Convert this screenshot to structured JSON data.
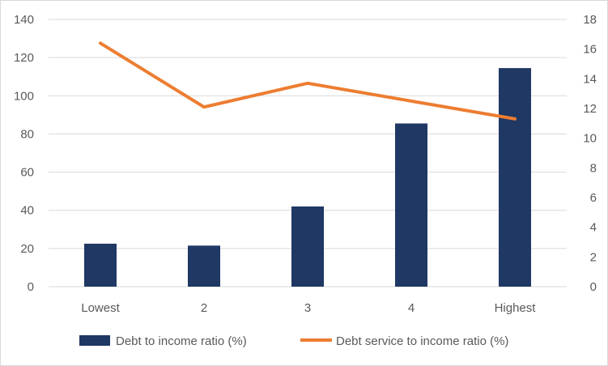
{
  "chart_data": {
    "type": "bar",
    "categories": [
      "Lowest",
      "2",
      "3",
      "4",
      "Highest"
    ],
    "series": [
      {
        "name": "Debt to income ratio (%)",
        "type": "bar",
        "axis": "left",
        "values": [
          22.5,
          21.5,
          42,
          85.5,
          114.5
        ],
        "color": "#1f3864"
      },
      {
        "name": "Debt service to income ratio (%)",
        "type": "line",
        "axis": "right",
        "values": [
          16.4,
          12.1,
          13.7,
          12.5,
          11.3
        ],
        "color": "#ed7d31"
      }
    ],
    "y_left": {
      "min": 0,
      "max": 140,
      "ticks": [
        "0",
        "20",
        "40",
        "60",
        "80",
        "100",
        "120",
        "140"
      ]
    },
    "y_right": {
      "min": 0,
      "max": 18,
      "ticks": [
        "0",
        "2",
        "4",
        "6",
        "8",
        "10",
        "12",
        "14",
        "16",
        "18"
      ]
    },
    "grid": true,
    "legend": "bottom"
  }
}
